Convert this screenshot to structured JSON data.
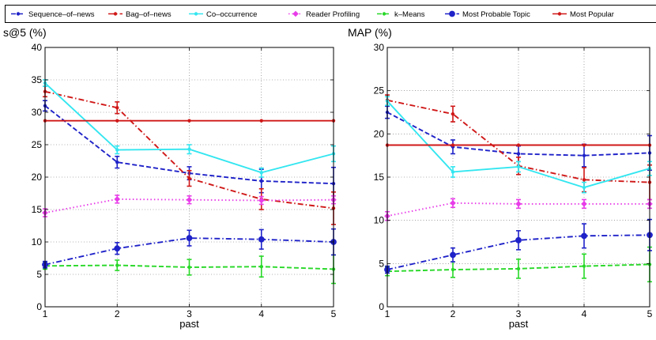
{
  "legend": {
    "entries": [
      {
        "name": "Sequence–of–news",
        "color": "#1f22c8",
        "dash": "dashed",
        "marker": "point"
      },
      {
        "name": "Bag–of–news",
        "color": "#d01818",
        "dash": "dashdot",
        "marker": "point"
      },
      {
        "name": "Co–occurrence",
        "color": "#33e6f0",
        "dash": "solid",
        "marker": "point"
      },
      {
        "name": "Reader Profiling",
        "color": "#e83ce8",
        "dash": "dotted",
        "marker": "diamond"
      },
      {
        "name": "k–Means",
        "color": "#28d828",
        "dash": "dashed",
        "marker": "point"
      },
      {
        "name": "Most Probable Topic",
        "color": "#1f22c8",
        "dash": "dashdot",
        "marker": "circle"
      },
      {
        "name": "Most Popular",
        "color": "#d01818",
        "dash": "solid",
        "marker": "point"
      }
    ]
  },
  "chart_data": [
    {
      "type": "line",
      "title": "s@5 (%)",
      "xlabel": "past",
      "ylabel": "",
      "x": [
        1,
        2,
        3,
        4,
        5
      ],
      "xlim": [
        1,
        5
      ],
      "ylim": [
        0,
        40
      ],
      "yticks": [
        0,
        5,
        10,
        15,
        20,
        25,
        30,
        35,
        40
      ],
      "xticks": [
        1,
        2,
        3,
        4,
        5
      ],
      "grid": "dotted",
      "series": [
        {
          "name": "Sequence–of–news",
          "values": [
            31.0,
            22.3,
            20.6,
            19.4,
            19.0
          ],
          "err": [
            0.8,
            0.9,
            1.0,
            1.8,
            2.5
          ]
        },
        {
          "name": "Bag–of–news",
          "values": [
            33.2,
            30.7,
            19.8,
            16.6,
            15.2
          ],
          "err": [
            0.8,
            0.9,
            1.2,
            1.6,
            2.5
          ]
        },
        {
          "name": "Co–occurrence",
          "values": [
            34.5,
            24.2,
            24.3,
            20.7,
            23.6
          ],
          "err": [
            0.5,
            0.6,
            0.7,
            0.7,
            1.2
          ]
        },
        {
          "name": "Reader Profiling",
          "values": [
            14.5,
            16.6,
            16.5,
            16.4,
            16.5
          ],
          "err": [
            0.6,
            0.6,
            0.6,
            0.6,
            0.6
          ]
        },
        {
          "name": "k–Means",
          "values": [
            6.3,
            6.4,
            6.1,
            6.2,
            5.8
          ],
          "err": [
            0.5,
            0.8,
            1.2,
            1.6,
            2.2
          ]
        },
        {
          "name": "Most Probable Topic",
          "values": [
            6.5,
            9.0,
            10.6,
            10.4,
            10.0
          ],
          "err": [
            0.5,
            0.9,
            1.2,
            1.5,
            2.0
          ]
        },
        {
          "name": "Most Popular",
          "values": [
            28.7,
            28.7,
            28.7,
            28.7,
            28.7
          ],
          "err": [
            0,
            0,
            0,
            0,
            0
          ]
        }
      ]
    },
    {
      "type": "line",
      "title": "MAP (%)",
      "xlabel": "past",
      "ylabel": "",
      "x": [
        1,
        2,
        3,
        4,
        5
      ],
      "xlim": [
        1,
        5
      ],
      "ylim": [
        0,
        30
      ],
      "yticks": [
        0,
        5,
        10,
        15,
        20,
        25,
        30
      ],
      "xticks": [
        1,
        2,
        3,
        4,
        5
      ],
      "grid": "dotted",
      "series": [
        {
          "name": "Sequence–of–news",
          "values": [
            22.5,
            18.5,
            17.7,
            17.5,
            17.8
          ],
          "err": [
            0.7,
            0.8,
            0.9,
            1.3,
            2.0
          ]
        },
        {
          "name": "Bag–of–news",
          "values": [
            23.9,
            22.3,
            16.3,
            14.7,
            14.4
          ],
          "err": [
            0.6,
            0.9,
            1.0,
            1.4,
            2.0
          ]
        },
        {
          "name": "Co–occurrence",
          "values": [
            23.8,
            15.6,
            16.2,
            13.8,
            16.0
          ],
          "err": [
            0.5,
            0.6,
            0.6,
            0.6,
            0.8
          ]
        },
        {
          "name": "Reader Profiling",
          "values": [
            10.5,
            12.0,
            11.9,
            11.9,
            11.9
          ],
          "err": [
            0.5,
            0.5,
            0.5,
            0.5,
            0.5
          ]
        },
        {
          "name": "k–Means",
          "values": [
            4.1,
            4.3,
            4.4,
            4.7,
            4.9
          ],
          "err": [
            0.5,
            0.9,
            1.1,
            1.4,
            2.0
          ]
        },
        {
          "name": "Most Probable Topic",
          "values": [
            4.3,
            6.0,
            7.7,
            8.2,
            8.3
          ],
          "err": [
            0.4,
            0.8,
            1.1,
            1.4,
            1.8
          ]
        },
        {
          "name": "Most Popular",
          "values": [
            18.7,
            18.7,
            18.7,
            18.7,
            18.7
          ],
          "err": [
            0,
            0,
            0,
            0,
            0
          ]
        }
      ]
    }
  ]
}
